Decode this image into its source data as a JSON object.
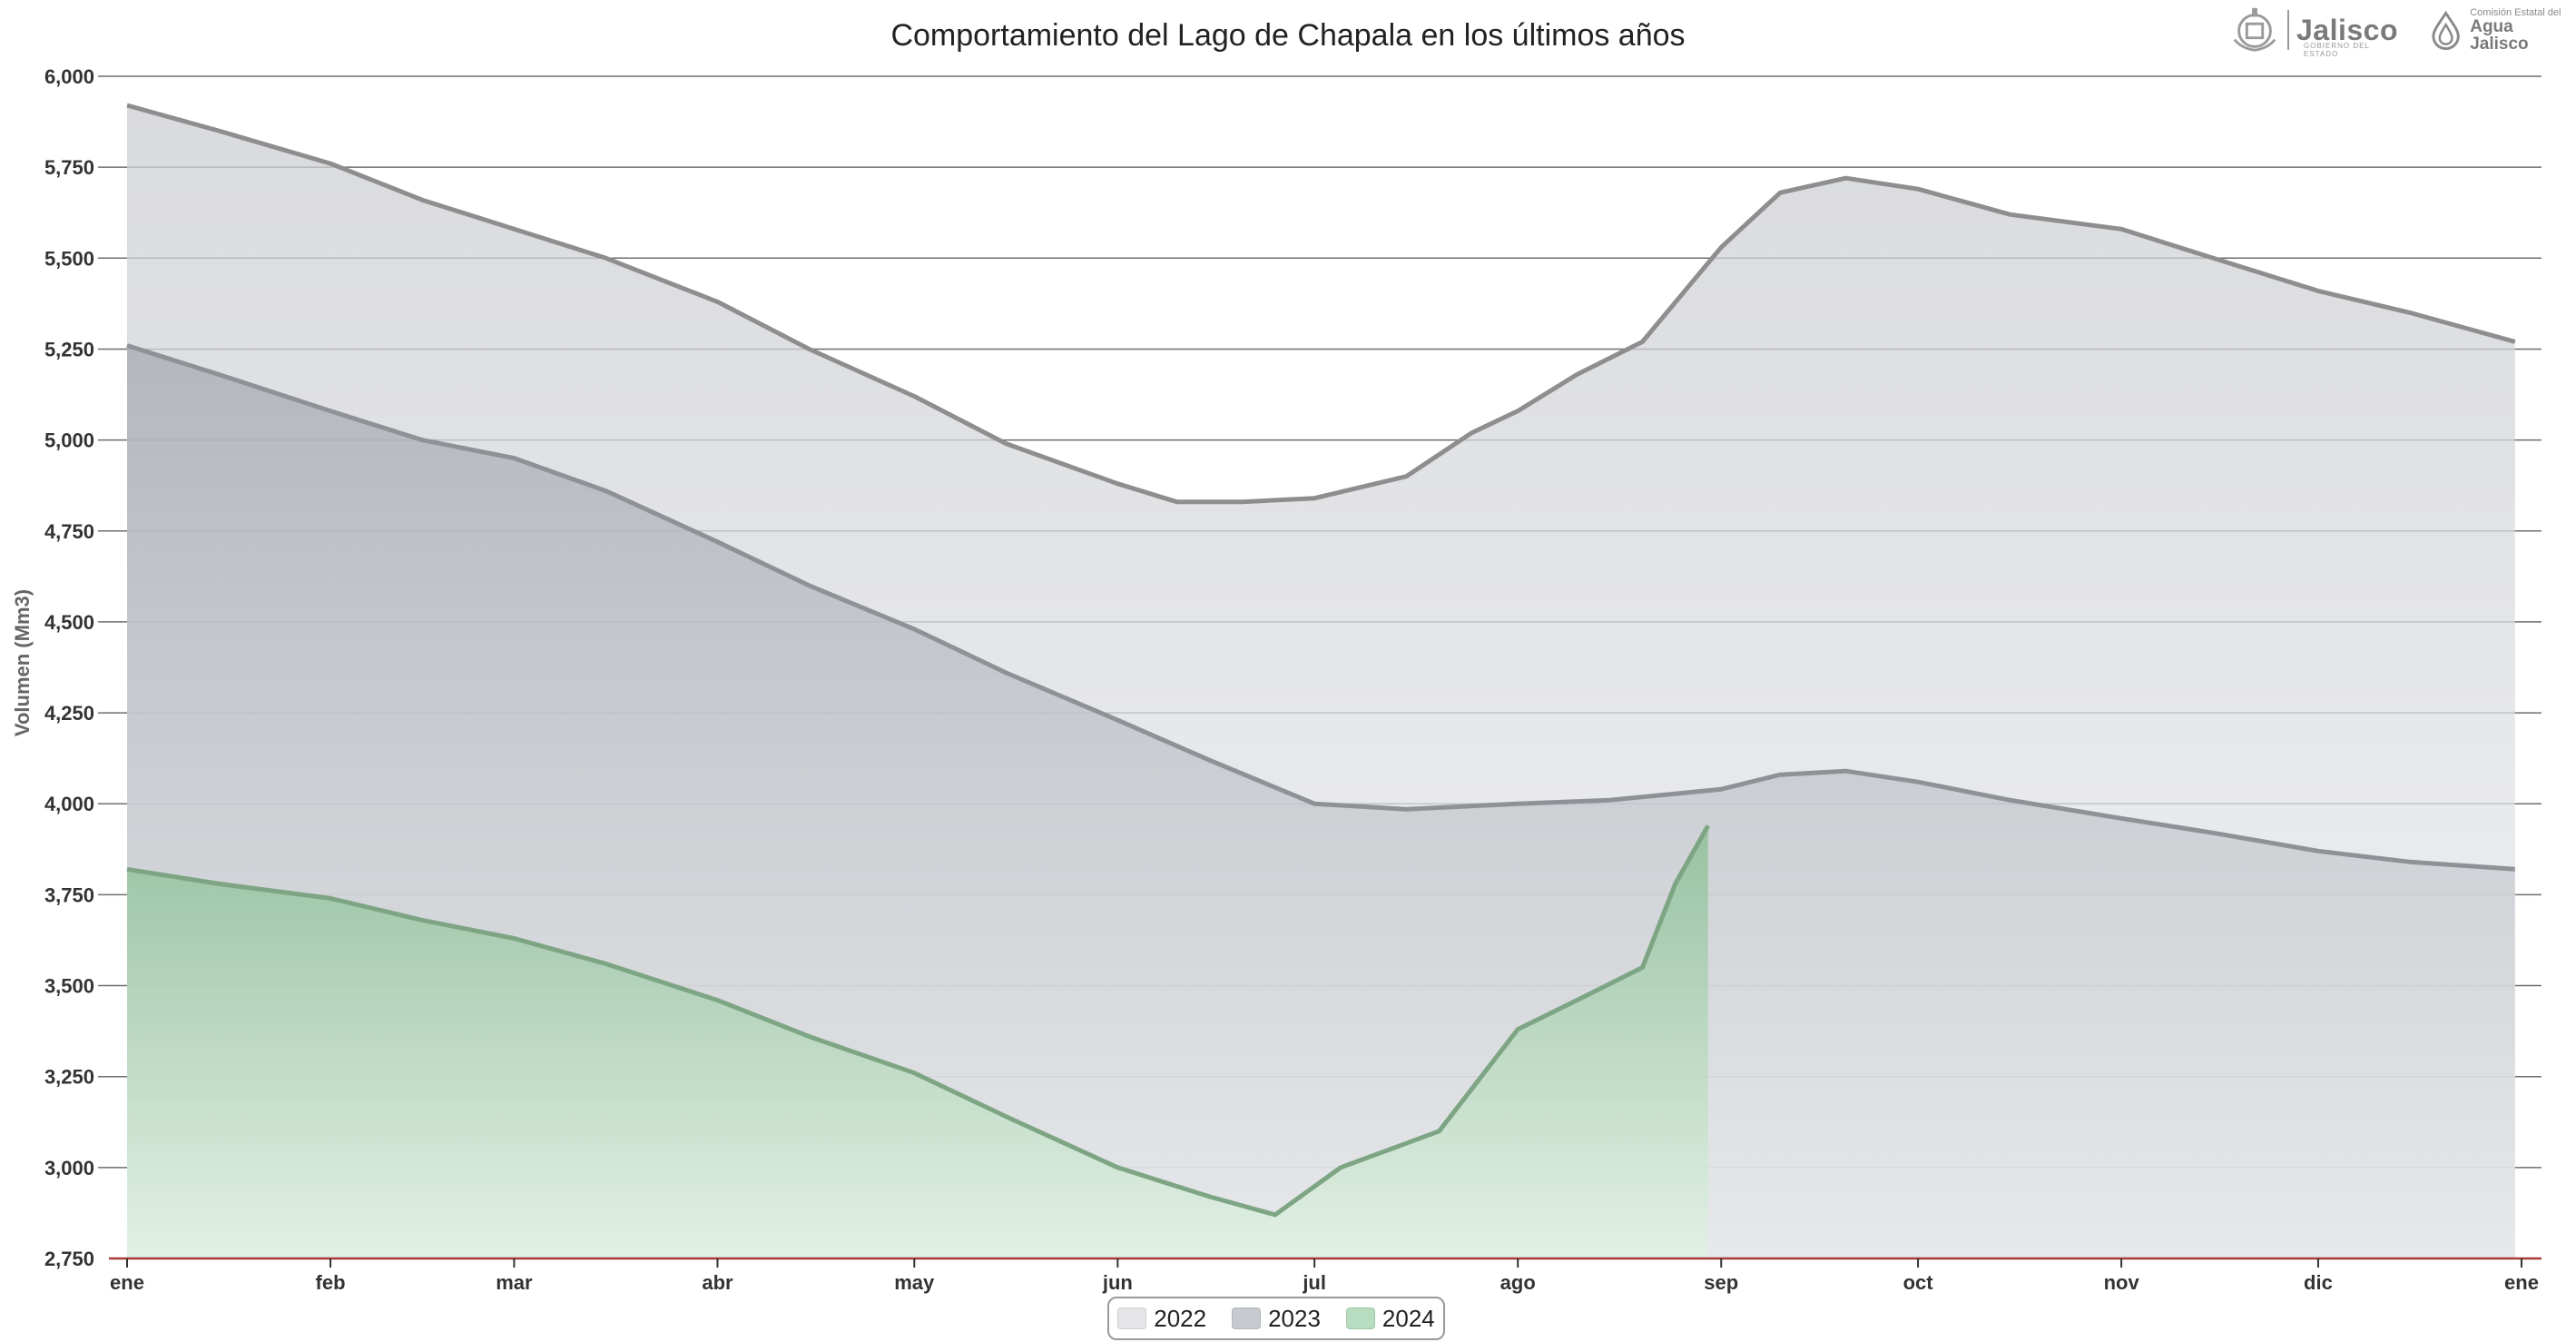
{
  "logos": {
    "jalisco": {
      "word": "Jalisco",
      "sub": "GOBIERNO DEL ESTADO"
    },
    "cea": {
      "line1": "Comisión Estatal del",
      "line2": "Agua Jalisco"
    }
  },
  "colors": {
    "s2022": "#c8c9cd",
    "s2023": "#b2b6bc",
    "s2024": "#9dc6a4",
    "line2022": "#8e8e8e",
    "line2023": "#8e9196",
    "line2024": "#7ea583",
    "grid": "#6e6e6e",
    "baseline": "#a83a3a"
  },
  "chart_data": {
    "type": "area",
    "title": "Comportamiento del Lago de Chapala en los últimos años",
    "xlabel": "",
    "ylabel": "Volumen (Mm3)",
    "ylim": [
      2750,
      6000
    ],
    "yticks": [
      "2,750",
      "3,000",
      "3,250",
      "3,500",
      "3,750",
      "4,000",
      "4,250",
      "4,500",
      "4,750",
      "5,000",
      "5,250",
      "5,500",
      "5,750",
      "6,000"
    ],
    "xticks": [
      "ene",
      "feb",
      "mar",
      "abr",
      "may",
      "jun",
      "jul",
      "ago",
      "sep",
      "oct",
      "nov",
      "dic",
      "ene"
    ],
    "grid": true,
    "legend_position": "bottom-center",
    "series": [
      {
        "name": "2022",
        "x": [
          "01-01",
          "01-15",
          "02-01",
          "02-15",
          "03-01",
          "03-15",
          "04-01",
          "04-15",
          "05-01",
          "05-15",
          "06-01",
          "06-10",
          "06-20",
          "07-01",
          "07-15",
          "07-25",
          "08-01",
          "08-10",
          "08-20",
          "09-01",
          "09-10",
          "09-20",
          "10-01",
          "10-15",
          "11-01",
          "11-15",
          "12-01",
          "12-15",
          "12-31"
        ],
        "values": [
          5920,
          5850,
          5760,
          5660,
          5580,
          5500,
          5380,
          5250,
          5120,
          4990,
          4880,
          4830,
          4830,
          4840,
          4900,
          5020,
          5080,
          5180,
          5270,
          5530,
          5680,
          5720,
          5690,
          5620,
          5580,
          5500,
          5410,
          5350,
          5270
        ]
      },
      {
        "name": "2023",
        "x": [
          "01-01",
          "01-15",
          "02-01",
          "02-15",
          "03-01",
          "03-15",
          "04-01",
          "04-15",
          "05-01",
          "05-15",
          "06-01",
          "06-15",
          "07-01",
          "07-15",
          "08-01",
          "08-15",
          "09-01",
          "09-10",
          "09-20",
          "10-01",
          "10-15",
          "11-01",
          "11-15",
          "12-01",
          "12-15",
          "12-31"
        ],
        "values": [
          5260,
          5180,
          5080,
          5000,
          4950,
          4860,
          4720,
          4600,
          4480,
          4360,
          4230,
          4120,
          4000,
          3985,
          4000,
          4010,
          4040,
          4080,
          4090,
          4060,
          4010,
          3960,
          3920,
          3870,
          3840,
          3820
        ]
      },
      {
        "name": "2024",
        "x": [
          "01-01",
          "01-15",
          "02-01",
          "02-15",
          "03-01",
          "03-15",
          "04-01",
          "04-15",
          "05-01",
          "05-15",
          "06-01",
          "06-15",
          "06-25",
          "07-05",
          "07-20",
          "08-01",
          "08-10",
          "08-20",
          "08-25",
          "08-30"
        ],
        "values": [
          3820,
          3780,
          3740,
          3680,
          3630,
          3560,
          3460,
          3360,
          3260,
          3140,
          3000,
          2920,
          2870,
          3000,
          3100,
          3380,
          3460,
          3550,
          3780,
          3940
        ]
      }
    ]
  }
}
